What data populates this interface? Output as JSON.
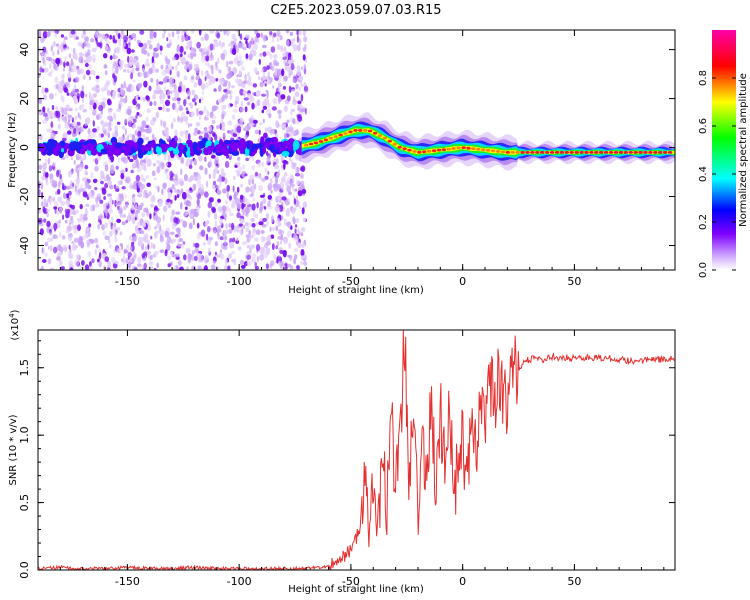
{
  "figure": {
    "title": "C2E5.2023.059.07.03.R15"
  },
  "chart_data": [
    {
      "type": "heatmap",
      "title": "C2E5.2023.059.07.03.R15",
      "xlabel": "Height of straight line (km)",
      "ylabel": "Frequency (Hz)",
      "xlim": [
        -190,
        95
      ],
      "ylim": [
        -50,
        48
      ],
      "x_ticks": [
        -150,
        -100,
        -50,
        0,
        50
      ],
      "x_tick_labels": [
        "-150",
        "-100",
        "-50",
        "0",
        "50"
      ],
      "y_ticks": [
        -40,
        -20,
        0,
        20,
        40
      ],
      "y_tick_labels": [
        "-40",
        "-20",
        "0",
        "20",
        "40"
      ],
      "colorbar": {
        "label": "Normalized spectral amplitude",
        "range": [
          0.0,
          1.0
        ],
        "ticks": [
          0.0,
          0.2,
          0.4,
          0.6,
          0.8
        ],
        "tick_labels": [
          "0.0",
          "0.2",
          "0.4",
          "0.6",
          "0.8"
        ],
        "colormap": [
          "#ffffff",
          "#7f00ff",
          "#0000ff",
          "#00ffff",
          "#00ff00",
          "#ffff00",
          "#ff0000",
          "#ff00aa"
        ]
      },
      "ridge_center": {
        "x": [
          -190,
          -150,
          -110,
          -75,
          -65,
          -55,
          -48,
          -42,
          -35,
          -28,
          -20,
          -10,
          0,
          10,
          20,
          40,
          60,
          80,
          95
        ],
        "y": [
          0,
          0,
          0,
          0,
          2,
          5,
          7,
          7,
          4,
          0,
          -2,
          -1,
          0,
          -1,
          -2,
          -2,
          -2,
          -2,
          -2
        ]
      },
      "noise_region_x": [
        -190,
        -70
      ],
      "grid": false
    },
    {
      "type": "line",
      "xlabel": "Height of straight line (km)",
      "ylabel": "SNR (10 * v/v)",
      "y_multiplier": "(x10",
      "y_multiplier_exp": "4",
      "y_multiplier_close": ")",
      "xlim": [
        -190,
        95
      ],
      "ylim": [
        0,
        1.78
      ],
      "x_ticks": [
        -150,
        -100,
        -50,
        0,
        50
      ],
      "x_tick_labels": [
        "-150",
        "-100",
        "-50",
        "0",
        "50"
      ],
      "y_ticks": [
        0.0,
        0.5,
        1.0,
        1.5
      ],
      "y_tick_labels": [
        "0.0",
        "0.5",
        "1.0",
        "1.5"
      ],
      "line_color": "#e53030",
      "grid": false,
      "series": [
        {
          "x": [
            -190,
            -180,
            -170,
            -160,
            -150,
            -140,
            -130,
            -120,
            -110,
            -100,
            -90,
            -80,
            -70,
            -60,
            -55,
            -50,
            -46,
            -44,
            -42,
            -40,
            -38,
            -36,
            -34,
            -32,
            -30,
            -28,
            -26,
            -24,
            -22,
            -20,
            -18,
            -16,
            -14,
            -12,
            -10,
            -8,
            -6,
            -4,
            -2,
            0,
            2,
            4,
            6,
            8,
            10,
            12,
            14,
            16,
            18,
            20,
            22,
            25,
            28,
            32,
            36,
            40,
            50,
            60,
            70,
            80,
            95
          ],
          "y": [
            0.01,
            0.02,
            0.01,
            0.01,
            0.02,
            0.01,
            0.01,
            0.02,
            0.01,
            0.01,
            0.01,
            0.01,
            0.01,
            0.03,
            0.08,
            0.15,
            0.3,
            0.8,
            0.4,
            0.7,
            0.3,
            0.9,
            0.4,
            1.2,
            0.6,
            1.0,
            1.75,
            0.7,
            1.3,
            0.5,
            1.1,
            0.6,
            1.4,
            0.5,
            1.2,
            0.7,
            1.3,
            0.5,
            0.9,
            1.0,
            0.6,
            1.3,
            0.9,
            1.4,
            1.0,
            1.5,
            1.2,
            1.4,
            1.3,
            1.25,
            1.45,
            1.5,
            1.55,
            1.57,
            1.56,
            1.58,
            1.57,
            1.58,
            1.56,
            1.55,
            1.57
          ]
        }
      ]
    }
  ]
}
